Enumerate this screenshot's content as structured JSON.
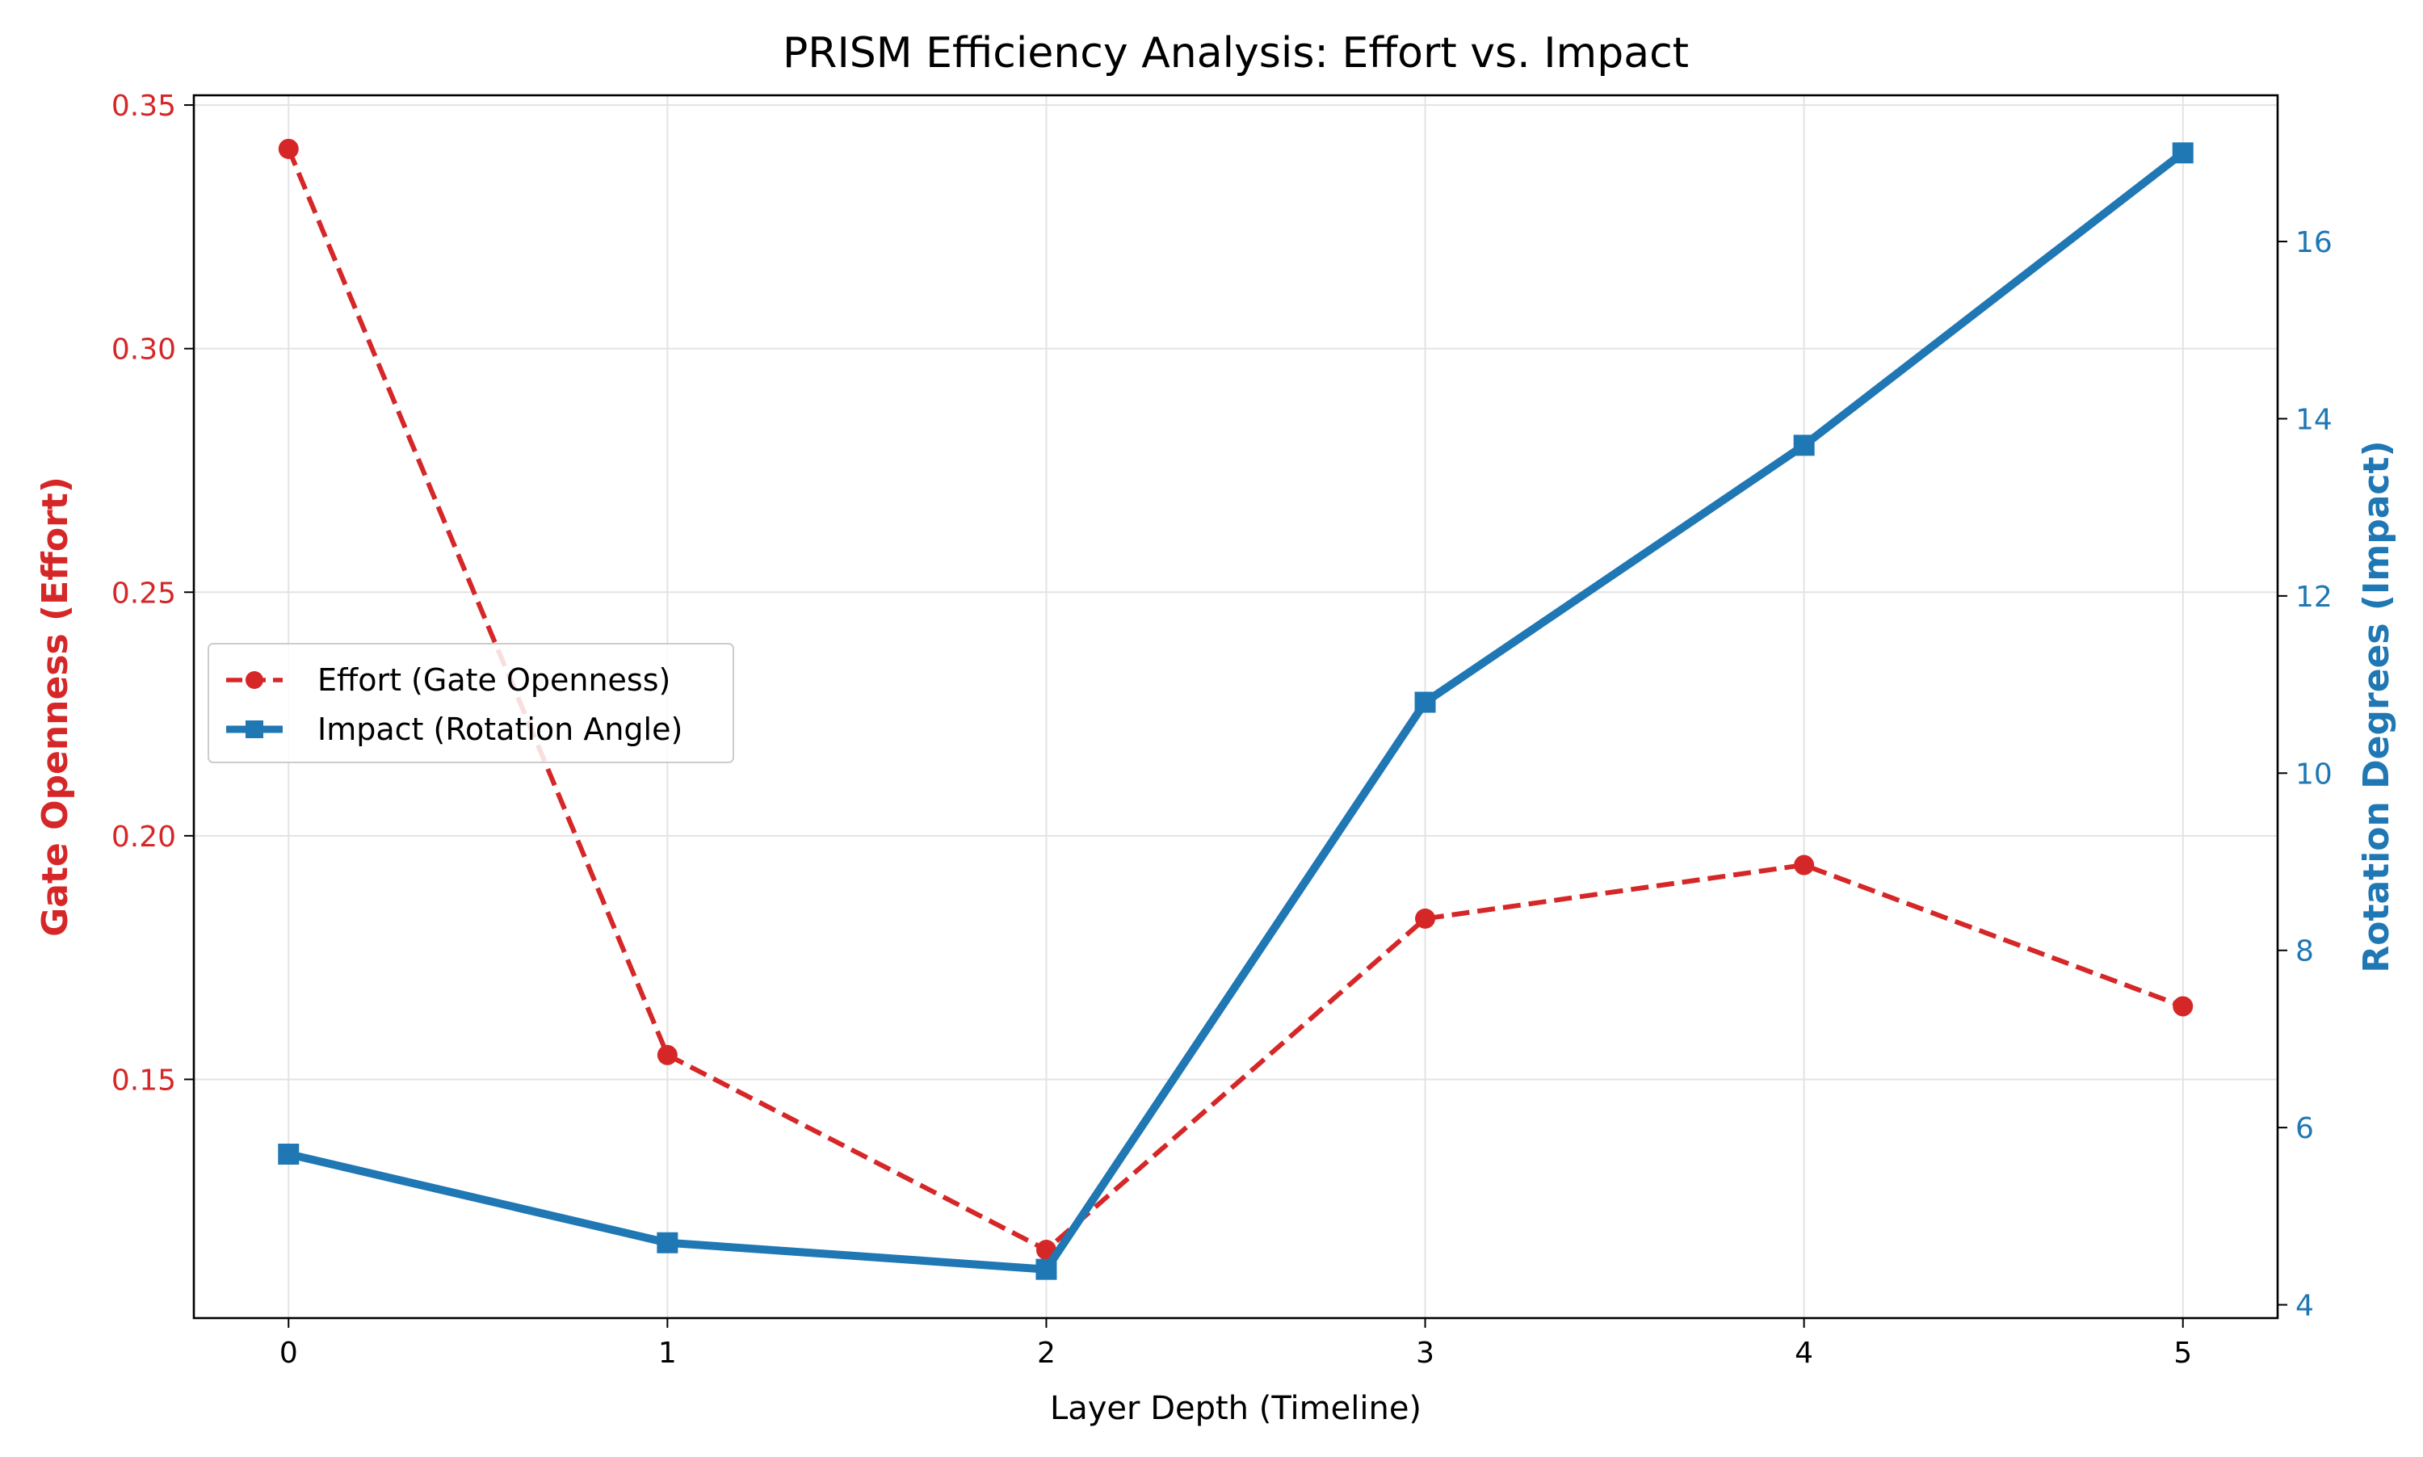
{
  "chart_data": {
    "type": "line",
    "title": "PRISM Efficiency Analysis: Effort vs. Impact",
    "xlabel": "Layer Depth (Timeline)",
    "ylabel_left": "Gate Openness (Effort)",
    "ylabel_right": "Rotation Degrees (Impact)",
    "x": [
      0,
      1,
      2,
      3,
      4,
      5
    ],
    "xlim": [
      -0.25,
      5.25
    ],
    "x_ticks": [
      "0",
      "1",
      "2",
      "3",
      "4",
      "5"
    ],
    "ylim_left": [
      0.101,
      0.352
    ],
    "y_ticks_left": [
      "0.15",
      "0.20",
      "0.25",
      "0.30",
      "0.35"
    ],
    "ylim_right": [
      3.85,
      17.65
    ],
    "y_ticks_right": [
      "4",
      "6",
      "8",
      "10",
      "12",
      "14",
      "16"
    ],
    "grid": true,
    "legend_position": "center-left",
    "series": [
      {
        "name": "Effort (Gate Openness)",
        "axis": "left",
        "style": "dashed",
        "marker": "circle",
        "color": "#d62728",
        "values": [
          0.341,
          0.155,
          0.115,
          0.183,
          0.194,
          0.165
        ]
      },
      {
        "name": "Impact (Rotation Angle)",
        "axis": "right",
        "style": "solid",
        "marker": "square",
        "color": "#1f77b4",
        "values": [
          5.7,
          4.7,
          4.4,
          10.8,
          13.7,
          17.0
        ]
      }
    ]
  },
  "colors": {
    "effort": "#d62728",
    "impact": "#1f77b4",
    "axis": "#000000",
    "grid": "#e3e3e3"
  }
}
